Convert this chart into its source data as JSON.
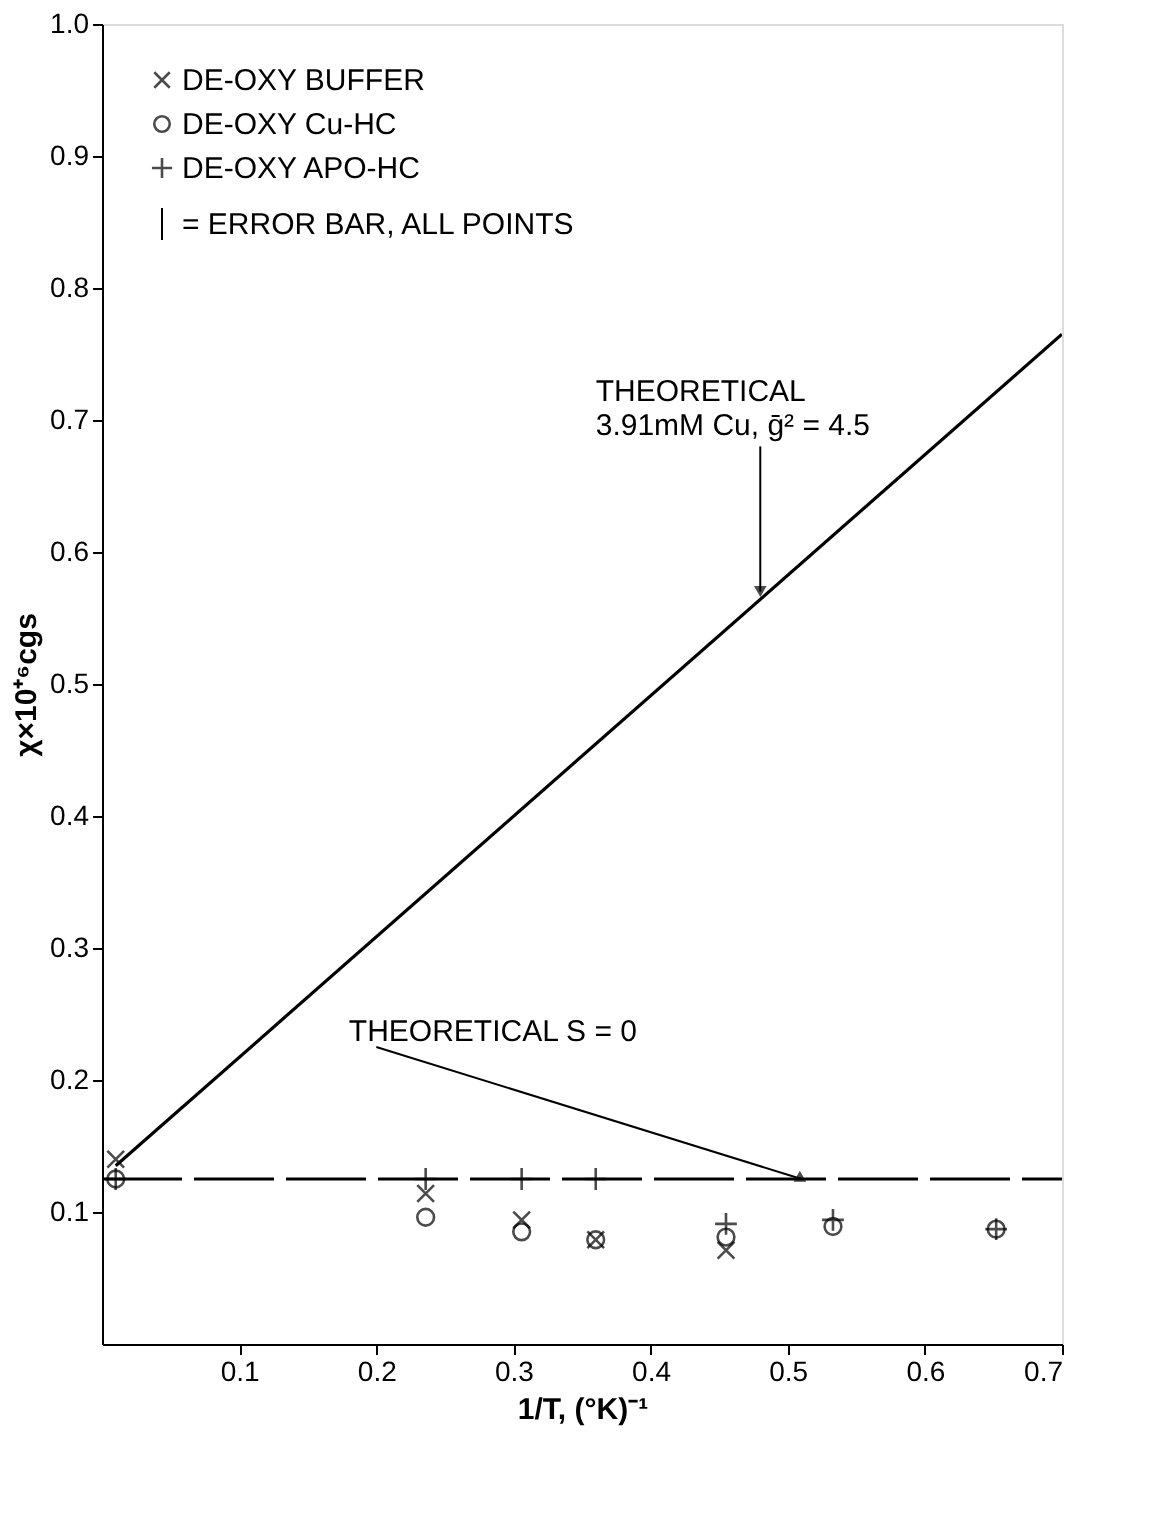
{
  "chart_data": {
    "type": "scatter",
    "xlabel": "1/T, (°K)⁻¹",
    "ylabel": "χ×10⁺⁶cgs",
    "xlim": [
      0,
      0.7
    ],
    "ylim": [
      0,
      1.0
    ],
    "xticks": [
      0.1,
      0.2,
      0.3,
      0.4,
      0.5,
      0.6,
      0.7
    ],
    "yticks": [
      0.1,
      0.2,
      0.3,
      0.4,
      0.5,
      0.6,
      0.7,
      0.8,
      0.9,
      {
        "value": 1.0,
        "label": "1.0"
      }
    ],
    "grid": false,
    "legend": "top left",
    "series": [
      {
        "name": "DE-OXY BUFFER",
        "marker": "x",
        "color": "#000000",
        "x": [
          0.01,
          0.236,
          0.306,
          0.36,
          0.455
        ],
        "values": [
          0.14,
          0.114,
          0.094,
          0.079,
          0.071
        ]
      },
      {
        "name": "DE-OXY Cu-HC",
        "marker": "circle",
        "color": "#000000",
        "x": [
          0.01,
          0.236,
          0.306,
          0.36,
          0.455,
          0.533,
          0.652
        ],
        "values": [
          0.125,
          0.096,
          0.085,
          0.079,
          0.081,
          0.089,
          0.087
        ]
      },
      {
        "name": "DE-OXY APO-HC",
        "marker": "cross",
        "color": "#000000",
        "x": [
          0.01,
          0.236,
          0.306,
          0.36,
          0.455,
          0.533,
          0.652
        ],
        "values": [
          0.125,
          0.125,
          0.125,
          0.125,
          0.091,
          0.094,
          0.087
        ]
      },
      {
        "type": "line",
        "line_style": "solid",
        "color": "#000000",
        "x": [
          0.01,
          0.7
        ],
        "values": [
          0.135,
          0.765
        ]
      },
      {
        "type": "line",
        "line_style": "dashed",
        "color": "#000000",
        "x": [
          0.0,
          0.7
        ],
        "values": [
          0.125,
          0.125
        ]
      }
    ],
    "annotations": [
      {
        "text": "THEORETICAL\n3.91mM Cu, ḡ² = 4.5",
        "x": 0.48,
        "y": 0.57
      },
      {
        "text": "THEORETICAL S = 0",
        "x": 0.51,
        "y": 0.125
      },
      "= ERROR BAR, ALL POINTS"
    ]
  }
}
